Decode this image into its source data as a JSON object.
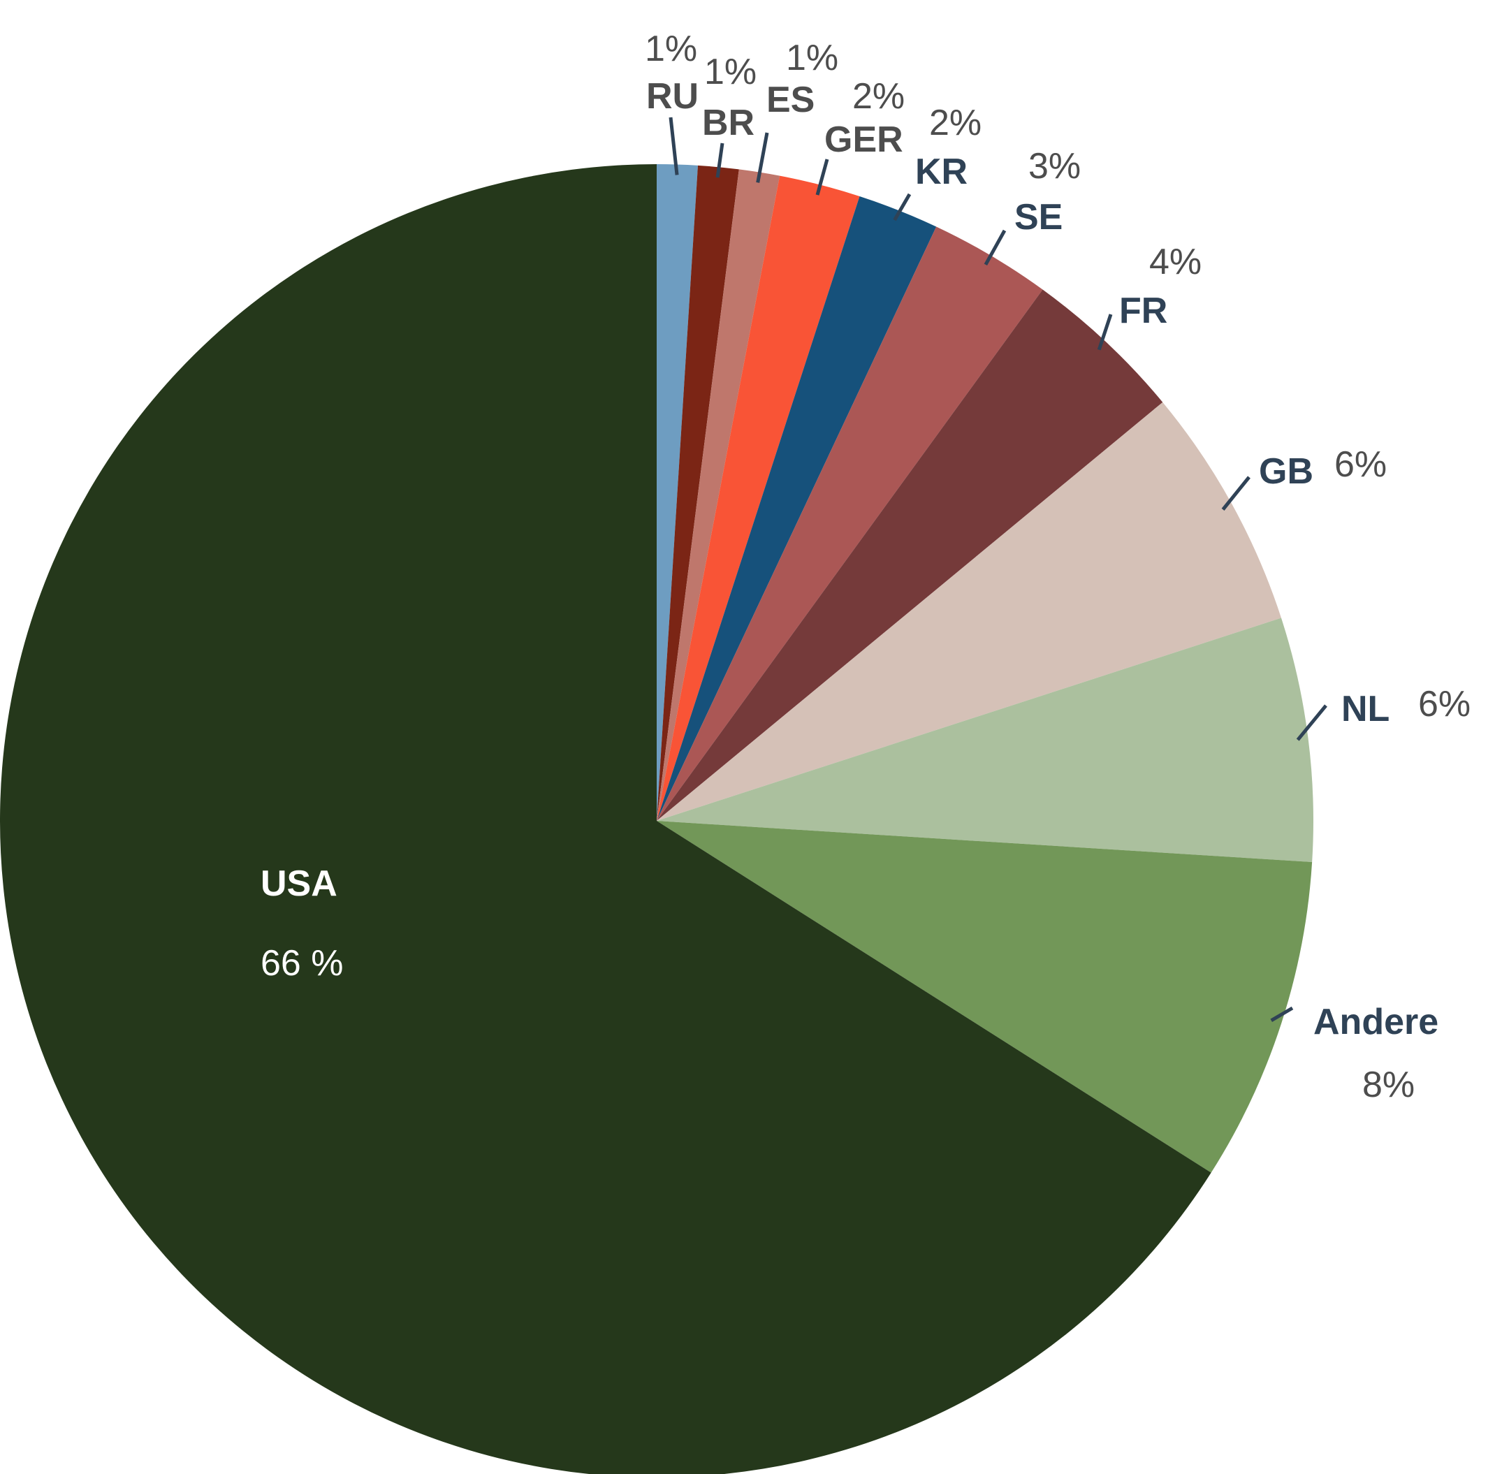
{
  "chart_data": {
    "type": "pie",
    "start": "12 o'clock",
    "direction": "clockwise",
    "slices": [
      {
        "label": "RU",
        "value": 1,
        "value_label": "1%",
        "color": "#6e9dc1"
      },
      {
        "label": "BR",
        "value": 1,
        "value_label": "1%",
        "color": "#7b2515"
      },
      {
        "label": "ES",
        "value": 1,
        "value_label": "1%",
        "color": "#bf776c"
      },
      {
        "label": "GER",
        "value": 2,
        "value_label": "2%",
        "color": "#f95436"
      },
      {
        "label": "KR",
        "value": 2,
        "value_label": "2%",
        "color": "#16517b"
      },
      {
        "label": "SE",
        "value": 3,
        "value_label": "3%",
        "color": "#ab5755"
      },
      {
        "label": "FR",
        "value": 4,
        "value_label": "4%",
        "color": "#753a3a"
      },
      {
        "label": "GB",
        "value": 6,
        "value_label": "6%",
        "color": "#d5c1b7"
      },
      {
        "label": "NL",
        "value": 6,
        "value_label": "6%",
        "color": "#abc09e"
      },
      {
        "label": "Andere",
        "value": 8,
        "value_label": "8%",
        "color": "#729758"
      },
      {
        "label": "USA",
        "value": 66,
        "value_label": "66 %",
        "color": "#25381b"
      }
    ]
  },
  "colors": {
    "leader": "#2f4256",
    "label_dark": "#4d4d4d",
    "label_navy": "#2f4256",
    "label_inside": "#ffffff"
  }
}
